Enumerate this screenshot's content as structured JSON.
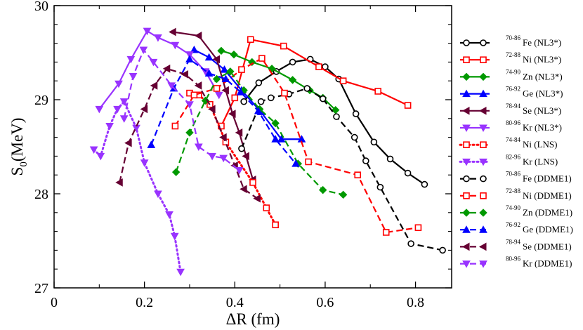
{
  "chart_data": {
    "type": "line",
    "title": "",
    "xlabel": "ΔR (fm)",
    "ylabel_main": "S",
    "ylabel_sub": "0",
    "ylabel_unit": "(MeV)",
    "xlim": [
      0,
      0.88
    ],
    "ylim": [
      27,
      30
    ],
    "xticks": [
      0,
      0.2,
      0.4,
      0.6,
      0.8
    ],
    "xtick_labels": [
      "0",
      "0.2",
      "0.4",
      "0.6",
      "0.8"
    ],
    "yticks": [
      27,
      28,
      29,
      30
    ],
    "ytick_labels": [
      "27",
      "28",
      "29",
      "30"
    ],
    "legend_position": "right",
    "series": [
      {
        "sup": "70-86",
        "name": "Fe (NL3*)",
        "color": "#000000",
        "marker": "circle",
        "dash": "solid",
        "x": [
          0.42,
          0.453,
          0.492,
          0.528,
          0.567,
          0.6,
          0.63,
          0.668,
          0.708,
          0.744,
          0.783,
          0.82
        ],
        "y": [
          28.98,
          29.18,
          29.3,
          29.4,
          29.43,
          29.35,
          29.22,
          28.85,
          28.55,
          28.37,
          28.22,
          28.1
        ]
      },
      {
        "sup": "72-88",
        "name": "Ni (NL3*)",
        "color": "#ff0000",
        "marker": "square",
        "dash": "solid",
        "x": [
          0.37,
          0.4,
          0.435,
          0.508,
          0.586,
          0.64,
          0.717,
          0.783
        ],
        "y": [
          28.72,
          29.02,
          29.64,
          29.57,
          29.35,
          29.2,
          29.09,
          28.94
        ]
      },
      {
        "sup": "74-90",
        "name": "Zn (NL3*)",
        "color": "#009900",
        "marker": "diamond",
        "dash": "solid",
        "x": [
          0.37,
          0.398,
          0.438,
          0.482,
          0.528,
          0.566,
          0.595,
          0.623
        ],
        "y": [
          29.52,
          29.48,
          29.4,
          29.33,
          29.21,
          29.1,
          29.02,
          28.89
        ]
      },
      {
        "sup": "76-92",
        "name": "Ge (NL3*)",
        "color": "#0000ff",
        "marker": "triangle-up",
        "dash": "solid",
        "x": [
          0.31,
          0.343,
          0.377,
          0.415,
          0.458,
          0.503,
          0.548
        ],
        "y": [
          29.53,
          29.45,
          29.32,
          29.1,
          28.87,
          28.58,
          28.58
        ]
      },
      {
        "sup": "78-94",
        "name": "Se (NL3*)",
        "color": "#660033",
        "marker": "triangle-left",
        "dash": "solid",
        "x": [
          0.263,
          0.32,
          0.36,
          0.38,
          0.395,
          0.41,
          0.425,
          0.44
        ],
        "y": [
          29.72,
          29.68,
          29.43,
          29.1,
          28.85,
          28.65,
          28.4,
          28.15
        ]
      },
      {
        "sup": "80-96",
        "name": "Kr (NL3*)",
        "color": "#9933ff",
        "marker": "triangle-down",
        "dash": "solid",
        "x": [
          0.1,
          0.143,
          0.17,
          0.206,
          0.23,
          0.268,
          0.3,
          0.335,
          0.365
        ],
        "y": [
          28.9,
          29.17,
          29.43,
          29.73,
          29.66,
          29.58,
          29.48,
          29.3,
          29.05
        ]
      },
      {
        "sup": "74-84",
        "name": "Ni (LNS)",
        "color": "#ff0000",
        "marker": "square",
        "dash": "dot",
        "x": [
          0.3,
          0.32,
          0.345,
          0.38,
          0.44,
          0.47,
          0.49
        ],
        "y": [
          29.07,
          29.05,
          28.95,
          28.55,
          28.12,
          27.85,
          27.67
        ]
      },
      {
        "sup": "82-96",
        "name": "Kr (LNS)",
        "color": "#9933ff",
        "marker": "triangle-down",
        "dash": "dot",
        "x": [
          0.088,
          0.103,
          0.123,
          0.14,
          0.155,
          0.182,
          0.2,
          0.23,
          0.255,
          0.267,
          0.28
        ],
        "y": [
          28.47,
          28.4,
          28.72,
          28.9,
          28.98,
          28.7,
          28.33,
          28.0,
          27.78,
          27.55,
          27.17
        ]
      },
      {
        "sup": "70-86",
        "name": "Fe (DDME1)",
        "color": "#000000",
        "marker": "circle",
        "dash": "dash",
        "x": [
          0.415,
          0.458,
          0.48,
          0.52,
          0.56,
          0.595,
          0.625,
          0.665,
          0.69,
          0.722,
          0.79,
          0.86
        ],
        "y": [
          28.48,
          28.98,
          29.02,
          29.06,
          29.12,
          29.01,
          28.82,
          28.6,
          28.35,
          28.07,
          27.47,
          27.4
        ]
      },
      {
        "sup": "72-88",
        "name": "Ni (DDME1)",
        "color": "#ff0000",
        "marker": "square",
        "dash": "dash",
        "x": [
          0.268,
          0.31,
          0.36,
          0.415,
          0.46,
          0.51,
          0.563,
          0.672,
          0.735,
          0.806
        ],
        "y": [
          28.72,
          29.05,
          29.12,
          29.32,
          29.44,
          29.07,
          28.34,
          28.2,
          27.59,
          27.64
        ]
      },
      {
        "sup": "74-90",
        "name": "Zn (DDME1)",
        "color": "#009900",
        "marker": "diamond",
        "dash": "dash",
        "x": [
          0.27,
          0.3,
          0.335,
          0.36,
          0.39,
          0.42,
          0.455,
          0.49,
          0.54,
          0.595,
          0.64
        ],
        "y": [
          28.23,
          28.65,
          28.99,
          29.22,
          29.3,
          29.1,
          28.9,
          28.75,
          28.32,
          28.04,
          27.99
        ]
      },
      {
        "sup": "76-92",
        "name": "Ge (DDME1)",
        "color": "#0000ff",
        "marker": "triangle-up",
        "dash": "dash",
        "x": [
          0.215,
          0.265,
          0.3,
          0.343,
          0.38,
          0.413,
          0.452,
          0.49,
          0.535
        ],
        "y": [
          28.52,
          29.12,
          29.43,
          29.28,
          29.22,
          29.08,
          28.88,
          28.58,
          28.32
        ]
      },
      {
        "sup": "78-94",
        "name": "Se (DDME1)",
        "color": "#660033",
        "marker": "triangle-left",
        "dash": "dash",
        "x": [
          0.145,
          0.165,
          0.2,
          0.222,
          0.25,
          0.29,
          0.32,
          0.35,
          0.375,
          0.4,
          0.42,
          0.45
        ],
        "y": [
          28.12,
          28.54,
          28.9,
          29.15,
          29.33,
          29.27,
          29.15,
          28.9,
          28.6,
          28.3,
          28.05,
          27.95
        ]
      },
      {
        "sup": "80-96",
        "name": "Kr (DDME1)",
        "color": "#9933ff",
        "marker": "triangle-down",
        "dash": "dash",
        "x": [
          0.155,
          0.175,
          0.198,
          0.22,
          0.26,
          0.3,
          0.32,
          0.35,
          0.375,
          0.41
        ],
        "y": [
          28.8,
          29.25,
          29.53,
          29.4,
          29.15,
          28.95,
          28.5,
          28.4,
          28.38,
          28.25
        ]
      }
    ]
  }
}
